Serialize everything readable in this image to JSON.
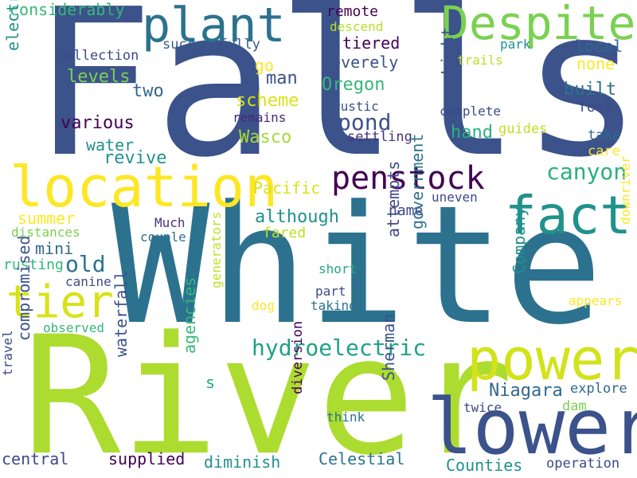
{
  "colors": {
    "c1": "#3b528b",
    "c2": "#2c728e",
    "c3": "#21918c",
    "c4": "#28ae80",
    "c5": "#5ec962",
    "c6": "#addc30",
    "c7": "#fde725",
    "c8": "#440154",
    "c9": "#482878",
    "c10": "#440154"
  },
  "words": [
    {
      "text": "Falls",
      "color": "#3b528b",
      "rotated": false
    },
    {
      "text": "White",
      "color": "#2c728e",
      "rotated": false
    },
    {
      "text": "River",
      "color": "#addc30",
      "rotated": false
    },
    {
      "text": "lower",
      "color": "#3b528b",
      "rotated": false
    },
    {
      "text": "location",
      "color": "#fde725",
      "rotated": false
    },
    {
      "text": "power",
      "color": "#d2e21b",
      "rotated": false
    },
    {
      "text": "fact",
      "color": "#21918c",
      "rotated": false
    },
    {
      "text": "plant",
      "color": "#2c728e",
      "rotated": false
    },
    {
      "text": "Despite",
      "color": "#7ad151",
      "rotated": false
    },
    {
      "text": "tier",
      "color": "#d8e219",
      "rotated": false
    },
    {
      "text": "penstock",
      "color": "#440154",
      "rotated": false
    },
    {
      "text": "hydroelectric",
      "color": "#1fa187",
      "rotated": false
    },
    {
      "text": "canyon",
      "color": "#2ab07f",
      "rotated": false
    },
    {
      "text": "pond",
      "color": "#3b528b",
      "rotated": false
    },
    {
      "text": "old",
      "color": "#2c728e",
      "rotated": false
    },
    {
      "text": "Niagara",
      "color": "#31688e",
      "rotated": false
    },
    {
      "text": "considerably",
      "color": "#35b779",
      "rotated": false
    },
    {
      "text": "Wasco",
      "color": "#a5db36",
      "rotated": false
    },
    {
      "text": "two",
      "color": "#31688e",
      "rotated": false
    },
    {
      "text": "levels",
      "color": "#7ad151",
      "rotated": false
    },
    {
      "text": "collection",
      "color": "#3e4989",
      "rotated": false
    },
    {
      "text": "successfully",
      "color": "#38598c",
      "rotated": false
    },
    {
      "text": "remote",
      "color": "#440154",
      "rotated": false
    },
    {
      "text": "descend",
      "color": "#b5de2b",
      "rotated": false
    },
    {
      "text": "tiered",
      "color": "#440154",
      "rotated": false
    },
    {
      "text": "severely",
      "color": "#3b528b",
      "rotated": false
    },
    {
      "text": "Oregon",
      "color": "#35b779",
      "rotated": false
    },
    {
      "text": "local",
      "color": "#31688e",
      "rotated": false
    },
    {
      "text": "none",
      "color": "#fde725",
      "rotated": false
    },
    {
      "text": "park",
      "color": "#21918c",
      "rotated": false
    },
    {
      "text": "trails",
      "color": "#bddf26",
      "rotated": false
    },
    {
      "text": "built",
      "color": "#2c728e",
      "rotated": false
    },
    {
      "text": "foot",
      "color": "#3e4989",
      "rotated": false
    },
    {
      "text": "complete",
      "color": "#3e4989",
      "rotated": false
    },
    {
      "text": "rustic",
      "color": "#3b528b",
      "rotated": false
    },
    {
      "text": "remains",
      "color": "#482878",
      "rotated": false
    },
    {
      "text": "go",
      "color": "#fde725",
      "rotated": false
    },
    {
      "text": "man",
      "color": "#3b528b",
      "rotated": false
    },
    {
      "text": "scheme",
      "color": "#d8e219",
      "rotated": false
    },
    {
      "text": "various",
      "color": "#440154",
      "rotated": false
    },
    {
      "text": "water",
      "color": "#21918c",
      "rotated": false
    },
    {
      "text": "revive",
      "color": "#21918c",
      "rotated": false
    },
    {
      "text": "hand",
      "color": "#2ab07f",
      "rotated": false
    },
    {
      "text": "guides",
      "color": "#c2df23",
      "rotated": false
    },
    {
      "text": "settling",
      "color": "#46327e",
      "rotated": false
    },
    {
      "text": "take",
      "color": "#31688e",
      "rotated": false
    },
    {
      "text": "care",
      "color": "#fde725",
      "rotated": false
    },
    {
      "text": "Pacific",
      "color": "#d8e219",
      "rotated": false
    },
    {
      "text": "uneven",
      "color": "#3e4989",
      "rotated": false
    },
    {
      "text": "summer",
      "color": "#fde725",
      "rotated": false
    },
    {
      "text": "Much",
      "color": "#46327e",
      "rotated": false
    },
    {
      "text": "although",
      "color": "#21918c",
      "rotated": false
    },
    {
      "text": "name",
      "color": "#3e4989",
      "rotated": false
    },
    {
      "text": "fared",
      "color": "#c2df23",
      "rotated": false
    },
    {
      "text": "distances",
      "color": "#7ad151",
      "rotated": false
    },
    {
      "text": "couple",
      "color": "#2c728e",
      "rotated": false
    },
    {
      "text": "mini",
      "color": "#31688e",
      "rotated": false
    },
    {
      "text": "rusting",
      "color": "#35b779",
      "rotated": false
    },
    {
      "text": "canine",
      "color": "#3e4989",
      "rotated": false
    },
    {
      "text": "short",
      "color": "#22a884",
      "rotated": false
    },
    {
      "text": "part",
      "color": "#3e4989",
      "rotated": false
    },
    {
      "text": "dog",
      "color": "#fde725",
      "rotated": false
    },
    {
      "text": "taking",
      "color": "#2c728e",
      "rotated": false
    },
    {
      "text": "appears",
      "color": "#fde725",
      "rotated": false
    },
    {
      "text": "observed",
      "color": "#35b779",
      "rotated": false
    },
    {
      "text": "s",
      "color": "#22a884",
      "rotated": false
    },
    {
      "text": "explore",
      "color": "#31688e",
      "rotated": false
    },
    {
      "text": "dam",
      "color": "#7ad151",
      "rotated": false
    },
    {
      "text": "twice",
      "color": "#3e4989",
      "rotated": false
    },
    {
      "text": "think",
      "color": "#2c728e",
      "rotated": false
    },
    {
      "text": "central",
      "color": "#3e4989",
      "rotated": false
    },
    {
      "text": "supplied",
      "color": "#440154",
      "rotated": false
    },
    {
      "text": "diminish",
      "color": "#21918c",
      "rotated": false
    },
    {
      "text": "Celestial",
      "color": "#2c728e",
      "rotated": false
    },
    {
      "text": "Counties",
      "color": "#21918c",
      "rotated": false
    },
    {
      "text": "operation",
      "color": "#3e4989",
      "rotated": false
    },
    {
      "text": "electricity",
      "color": "#21918c",
      "rotated": true
    },
    {
      "text": "Light",
      "color": "#3b528b",
      "rotated": true
    },
    {
      "text": "attempts",
      "color": "#3e4989",
      "rotated": true
    },
    {
      "text": "government",
      "color": "#2c728e",
      "rotated": true
    },
    {
      "text": "Company",
      "color": "#21918c",
      "rotated": true
    },
    {
      "text": "waterfall",
      "color": "#3b528b",
      "rotated": true
    },
    {
      "text": "agencies",
      "color": "#35b779",
      "rotated": true
    },
    {
      "text": "generators",
      "color": "#c2df23",
      "rotated": true
    },
    {
      "text": "compromised",
      "color": "#3b528b",
      "rotated": true
    },
    {
      "text": "travel",
      "color": "#3e4989",
      "rotated": true
    },
    {
      "text": "diversion",
      "color": "#440154",
      "rotated": true
    },
    {
      "text": "Sherman",
      "color": "#3b528b",
      "rotated": true
    },
    {
      "text": "downriver",
      "color": "#fde725",
      "rotated": true
    }
  ]
}
